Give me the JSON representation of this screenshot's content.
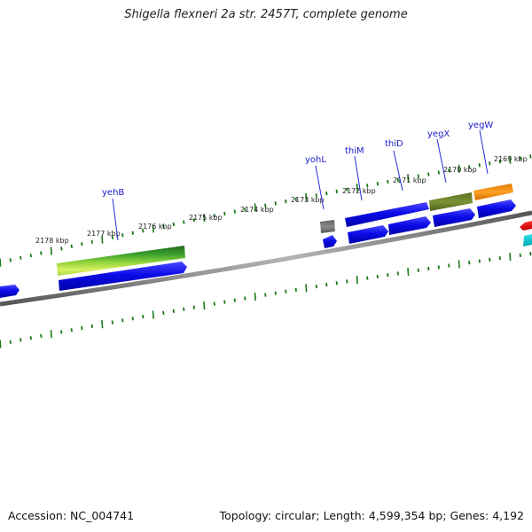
{
  "title": "Shigella flexneri 2a str. 2457T, complete genome",
  "footer": {
    "accession": "Accession: NC_004741",
    "summary": "Topology: circular; Length: 4,599,354 bp; Genes: 4,192"
  },
  "colors": {
    "background": "#ffffff",
    "backbone": "#808080",
    "tick": "#1a7a1a",
    "gene": "#1010e6",
    "gene_label": "#1a1acc",
    "scale_label": "#222222"
  },
  "scale_labels": [
    "2178 kbp",
    "2177 kbp",
    "2176 kbp",
    "2175 kbp",
    "2174 kbp",
    "2173 kbp",
    "2172 kbp",
    "2171 kbp",
    "2170 kbp",
    "2169 kbp"
  ],
  "gene_labels": [
    "yehB",
    "yohL",
    "thiM",
    "thiD",
    "yegX",
    "yegW"
  ]
}
